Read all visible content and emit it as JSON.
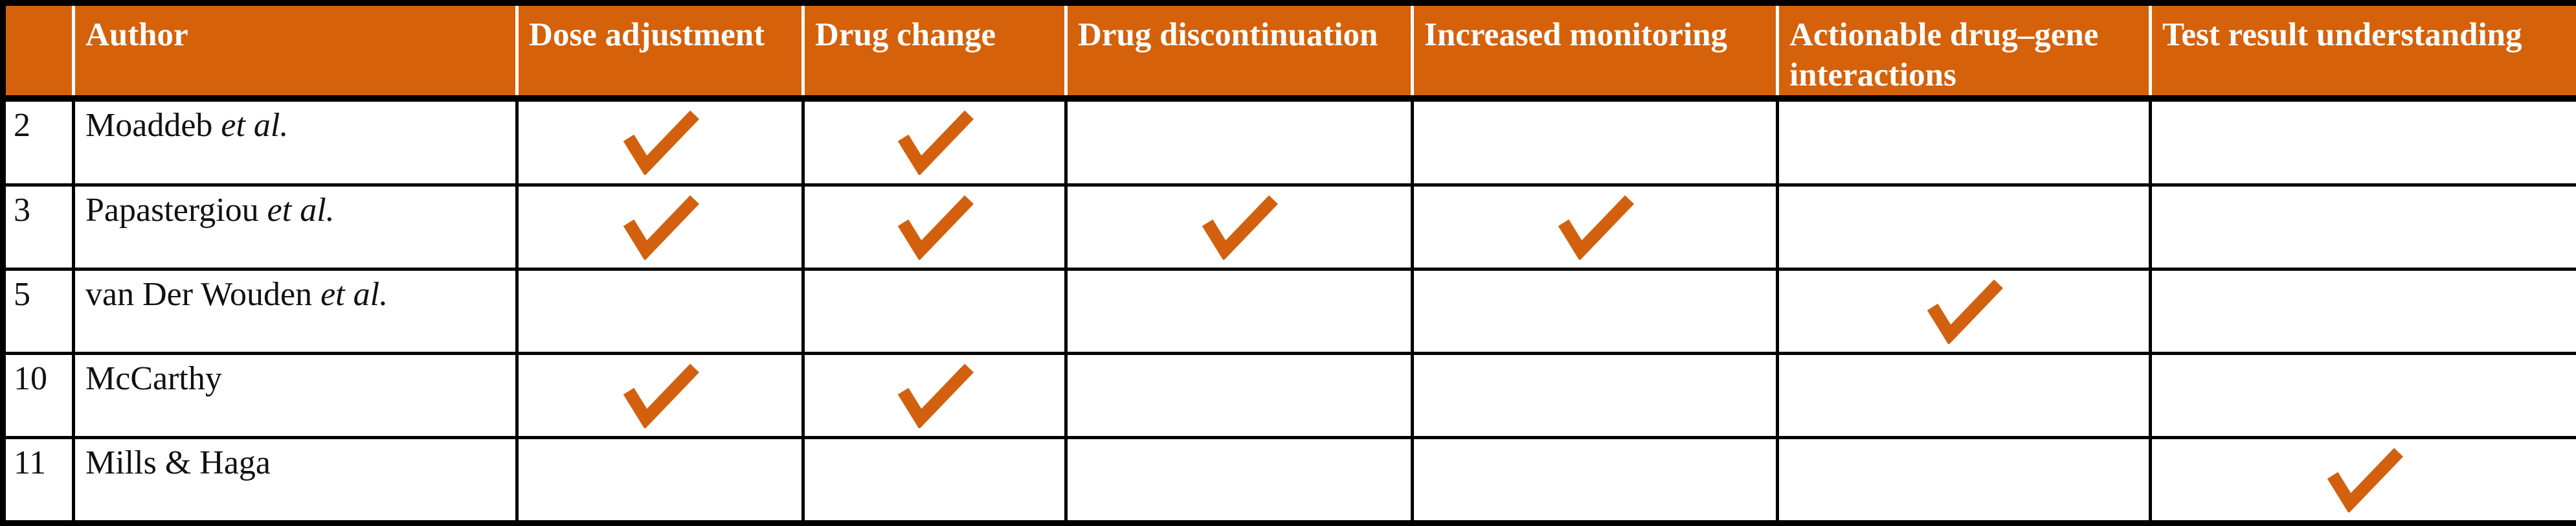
{
  "colors": {
    "header_bg": "#D5610A",
    "header_text": "#FFFFFF",
    "check": "#D2600E",
    "border": "#000000",
    "body_text": "#111111",
    "page_bg": "#FFFFFF"
  },
  "table": {
    "columns": [
      {
        "label": ""
      },
      {
        "label": "Author"
      },
      {
        "label": "Dose adjustment"
      },
      {
        "label": "Drug change"
      },
      {
        "label": "Drug discontinuation"
      },
      {
        "label": "Increased monitoring"
      },
      {
        "label": "Actionable drug–gene interactions"
      },
      {
        "label": "Test result understanding"
      }
    ],
    "rows": [
      {
        "id": "2",
        "author_name": "Moaddeb",
        "author_suffix": "et al.",
        "checks": [
          true,
          true,
          false,
          false,
          false,
          false
        ]
      },
      {
        "id": "3",
        "author_name": "Papastergiou",
        "author_suffix": "et al.",
        "checks": [
          true,
          true,
          true,
          true,
          false,
          false
        ]
      },
      {
        "id": "5",
        "author_name": "van Der Wouden",
        "author_suffix": "et al.",
        "checks": [
          false,
          false,
          false,
          false,
          true,
          false
        ]
      },
      {
        "id": "10",
        "author_name": "McCarthy",
        "author_suffix": "",
        "checks": [
          true,
          true,
          false,
          false,
          false,
          false
        ]
      },
      {
        "id": "11",
        "author_name": "Mills & Haga",
        "author_suffix": "",
        "checks": [
          false,
          false,
          false,
          false,
          false,
          true
        ]
      }
    ],
    "check_icon": "checkmark"
  }
}
